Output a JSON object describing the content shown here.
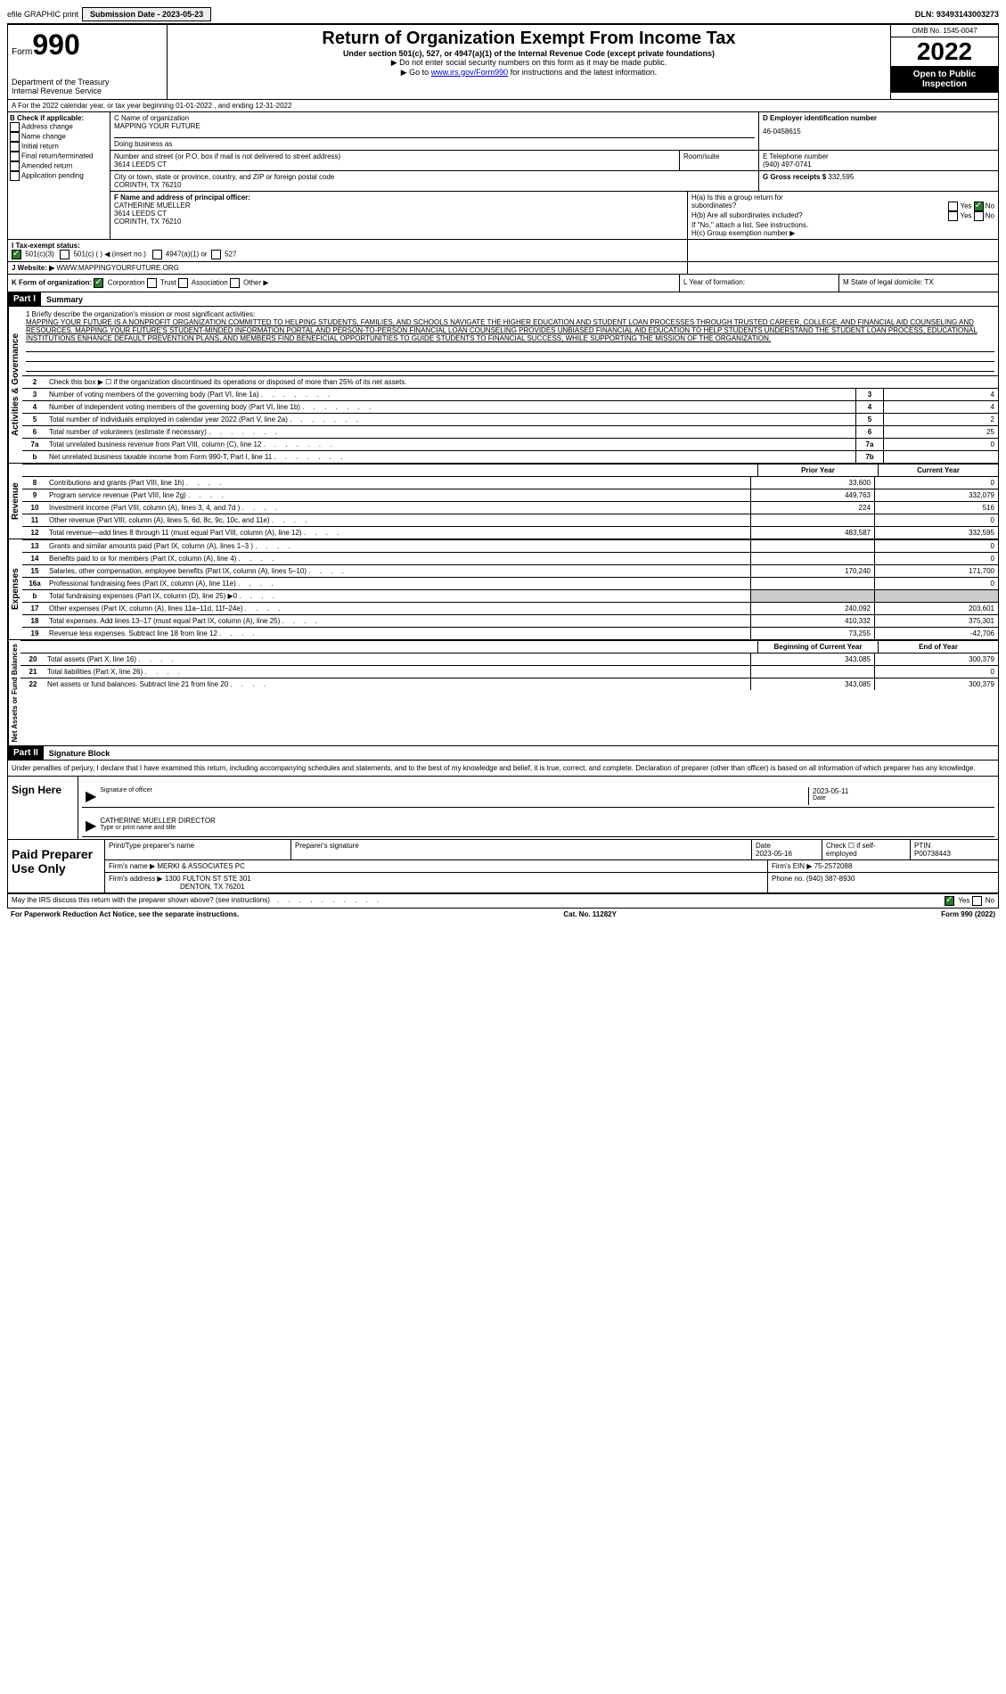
{
  "top": {
    "efile": "efile GRAPHIC print",
    "submission_label": "Submission Date - 2023-05-23",
    "dln": "DLN: 93493143003273"
  },
  "header": {
    "form_label": "Form",
    "form_number": "990",
    "dept": "Department of the Treasury",
    "irs": "Internal Revenue Service",
    "title": "Return of Organization Exempt From Income Tax",
    "subtitle": "Under section 501(c), 527, or 4947(a)(1) of the Internal Revenue Code (except private foundations)",
    "note1": "▶ Do not enter social security numbers on this form as it may be made public.",
    "note2_pre": "▶ Go to ",
    "note2_link": "www.irs.gov/Form990",
    "note2_post": " for instructions and the latest information.",
    "omb": "OMB No. 1545-0047",
    "year": "2022",
    "open": "Open to Public Inspection"
  },
  "lineA": "A For the 2022 calendar year, or tax year beginning 01-01-2022   , and ending 12-31-2022",
  "B": {
    "label": "B Check if applicable:",
    "opts": [
      "Address change",
      "Name change",
      "Initial return",
      "Final return/terminated",
      "Amended return",
      "Application pending"
    ]
  },
  "C": {
    "name_label": "C Name of organization",
    "name": "MAPPING YOUR FUTURE",
    "dba_label": "Doing business as",
    "addr_label": "Number and street (or P.O. box if mail is not delivered to street address)",
    "addr": "3614 LEEDS CT",
    "room_label": "Room/suite",
    "city_label": "City or town, state or province, country, and ZIP or foreign postal code",
    "city": "CORINTH, TX  76210"
  },
  "D": {
    "label": "D Employer identification number",
    "value": "46-0458615"
  },
  "E": {
    "label": "E Telephone number",
    "value": "(940) 497-0741"
  },
  "G": {
    "label": "G Gross receipts $",
    "value": "332,595"
  },
  "F": {
    "label": "F  Name and address of principal officer:",
    "name": "CATHERINE MUELLER",
    "addr1": "3614 LEEDS CT",
    "addr2": "CORINTH, TX  76210"
  },
  "H": {
    "a_label": "H(a)  Is this a group return for",
    "a_sub": "subordinates?",
    "b_label": "H(b)  Are all subordinates included?",
    "b_note": "If \"No,\" attach a list. See instructions.",
    "c_label": "H(c)  Group exemption number ▶"
  },
  "I": {
    "label": "I   Tax-exempt status:",
    "opt1": "501(c)(3)",
    "opt2": "501(c) (  ) ◀ (insert no.)",
    "opt3": "4947(a)(1) or",
    "opt4": "527"
  },
  "J": {
    "label": "J   Website: ▶",
    "value": "WWW.MAPPINGYOURFUTURE.ORG"
  },
  "K": {
    "label": "K Form of organization:",
    "opts": [
      "Corporation",
      "Trust",
      "Association",
      "Other ▶"
    ]
  },
  "L": {
    "label": "L Year of formation:"
  },
  "M": {
    "label": "M State of legal domicile: TX"
  },
  "part1": {
    "header": "Part I",
    "title": "Summary",
    "mission_label": "1   Briefly describe the organization's mission or most significant activities:",
    "mission": "MAPPING YOUR FUTURE IS A NONPROFIT ORGANIZATION COMMITTED TO HELPING STUDENTS, FAMILIES, AND SCHOOLS NAVIGATE THE HIGHER EDUCATION AND STUDENT LOAN PROCESSES THROUGH TRUSTED CAREER, COLLEGE, AND FINANCIAL AID COUNSELING AND RESOURCES. MAPPING YOUR FUTURE'S STUDENT-MINDED INFORMATION PORTAL AND PERSON-TO-PERSON FINANCIAL LOAN COUNSELING PROVIDES UNBIASED FINANCIAL AID EDUCATION TO HELP STUDENTS UNDERSTAND THE STUDENT LOAN PROCESS, EDUCATIONAL INSTITUTIONS ENHANCE DEFAULT PREVENTION PLANS, AND MEMBERS FIND BENEFICIAL OPPORTUNITIES TO GUIDE STUDENTS TO FINANCIAL SUCCESS, WHILE SUPPORTING THE MISSION OF THE ORGANIZATION.",
    "line2": "Check this box ▶ ☐ if the organization discontinued its operations or disposed of more than 25% of its net assets."
  },
  "gov_tab": "Activities & Governance",
  "rev_tab": "Revenue",
  "exp_tab": "Expenses",
  "net_tab": "Net Assets or Fund Balances",
  "gov_rows": [
    {
      "n": "3",
      "d": "Number of voting members of the governing body (Part VI, line 1a)",
      "b": "3",
      "v": "4"
    },
    {
      "n": "4",
      "d": "Number of independent voting members of the governing body (Part VI, line 1b)",
      "b": "4",
      "v": "4"
    },
    {
      "n": "5",
      "d": "Total number of individuals employed in calendar year 2022 (Part V, line 2a)",
      "b": "5",
      "v": "2"
    },
    {
      "n": "6",
      "d": "Total number of volunteers (estimate if necessary)",
      "b": "6",
      "v": "25"
    },
    {
      "n": "7a",
      "d": "Total unrelated business revenue from Part VIII, column (C), line 12",
      "b": "7a",
      "v": "0"
    },
    {
      "n": "b",
      "d": "Net unrelated business taxable income from Form 990-T, Part I, line 11",
      "b": "7b",
      "v": ""
    }
  ],
  "col_headers": {
    "prior": "Prior Year",
    "current": "Current Year"
  },
  "rev_rows": [
    {
      "n": "8",
      "d": "Contributions and grants (Part VIII, line 1h)",
      "p": "33,600",
      "c": "0"
    },
    {
      "n": "9",
      "d": "Program service revenue (Part VIII, line 2g)",
      "p": "449,763",
      "c": "332,079"
    },
    {
      "n": "10",
      "d": "Investment income (Part VIII, column (A), lines 3, 4, and 7d )",
      "p": "224",
      "c": "516"
    },
    {
      "n": "11",
      "d": "Other revenue (Part VIII, column (A), lines 5, 6d, 8c, 9c, 10c, and 11e)",
      "p": "",
      "c": "0"
    },
    {
      "n": "12",
      "d": "Total revenue—add lines 8 through 11 (must equal Part VIII, column (A), line 12)",
      "p": "483,587",
      "c": "332,595"
    }
  ],
  "exp_rows": [
    {
      "n": "13",
      "d": "Grants and similar amounts paid (Part IX, column (A), lines 1–3 )",
      "p": "",
      "c": "0"
    },
    {
      "n": "14",
      "d": "Benefits paid to or for members (Part IX, column (A), line 4)",
      "p": "",
      "c": "0"
    },
    {
      "n": "15",
      "d": "Salaries, other compensation, employee benefits (Part IX, column (A), lines 5–10)",
      "p": "170,240",
      "c": "171,700"
    },
    {
      "n": "16a",
      "d": "Professional fundraising fees (Part IX, column (A), line 11e)",
      "p": "",
      "c": "0"
    },
    {
      "n": "b",
      "d": "Total fundraising expenses (Part IX, column (D), line 25) ▶0",
      "p": "shade",
      "c": "shade"
    },
    {
      "n": "17",
      "d": "Other expenses (Part IX, column (A), lines 11a–11d, 11f–24e)",
      "p": "240,092",
      "c": "203,601"
    },
    {
      "n": "18",
      "d": "Total expenses. Add lines 13–17 (must equal Part IX, column (A), line 25)",
      "p": "410,332",
      "c": "375,301"
    },
    {
      "n": "19",
      "d": "Revenue less expenses. Subtract line 18 from line 12",
      "p": "73,255",
      "c": "-42,706"
    }
  ],
  "net_headers": {
    "begin": "Beginning of Current Year",
    "end": "End of Year"
  },
  "net_rows": [
    {
      "n": "20",
      "d": "Total assets (Part X, line 16)",
      "p": "343,085",
      "c": "300,379"
    },
    {
      "n": "21",
      "d": "Total liabilities (Part X, line 26)",
      "p": "",
      "c": "0"
    },
    {
      "n": "22",
      "d": "Net assets or fund balances. Subtract line 21 from line 20",
      "p": "343,085",
      "c": "300,379"
    }
  ],
  "part2": {
    "header": "Part II",
    "title": "Signature Block",
    "penalty": "Under penalties of perjury, I declare that I have examined this return, including accompanying schedules and statements, and to the best of my knowledge and belief, it is true, correct, and complete. Declaration of preparer (other than officer) is based on all information of which preparer has any knowledge."
  },
  "sign": {
    "label": "Sign Here",
    "sig_label": "Signature of officer",
    "date_label": "Date",
    "date": "2023-05-11",
    "name": "CATHERINE MUELLER  DIRECTOR",
    "name_label": "Type or print name and title"
  },
  "prep": {
    "label": "Paid Preparer Use Only",
    "h1": "Print/Type preparer's name",
    "h2": "Preparer's signature",
    "h3": "Date",
    "date": "2023-05-16",
    "h4": "Check ☐ if self-employed",
    "h5": "PTIN",
    "ptin": "P00738443",
    "firm_label": "Firm's name    ▶",
    "firm": "MERKI & ASSOCIATES PC",
    "ein_label": "Firm's EIN ▶",
    "ein": "75-2572088",
    "addr_label": "Firm's address ▶",
    "addr1": "1300 FULTON ST STE 301",
    "addr2": "DENTON, TX  76201",
    "phone_label": "Phone no.",
    "phone": "(940) 387-8930"
  },
  "discuss": "May the IRS discuss this return with the preparer shown above? (see instructions)",
  "footer": {
    "left": "For Paperwork Reduction Act Notice, see the separate instructions.",
    "mid": "Cat. No. 11282Y",
    "right": "Form 990 (2022)"
  }
}
